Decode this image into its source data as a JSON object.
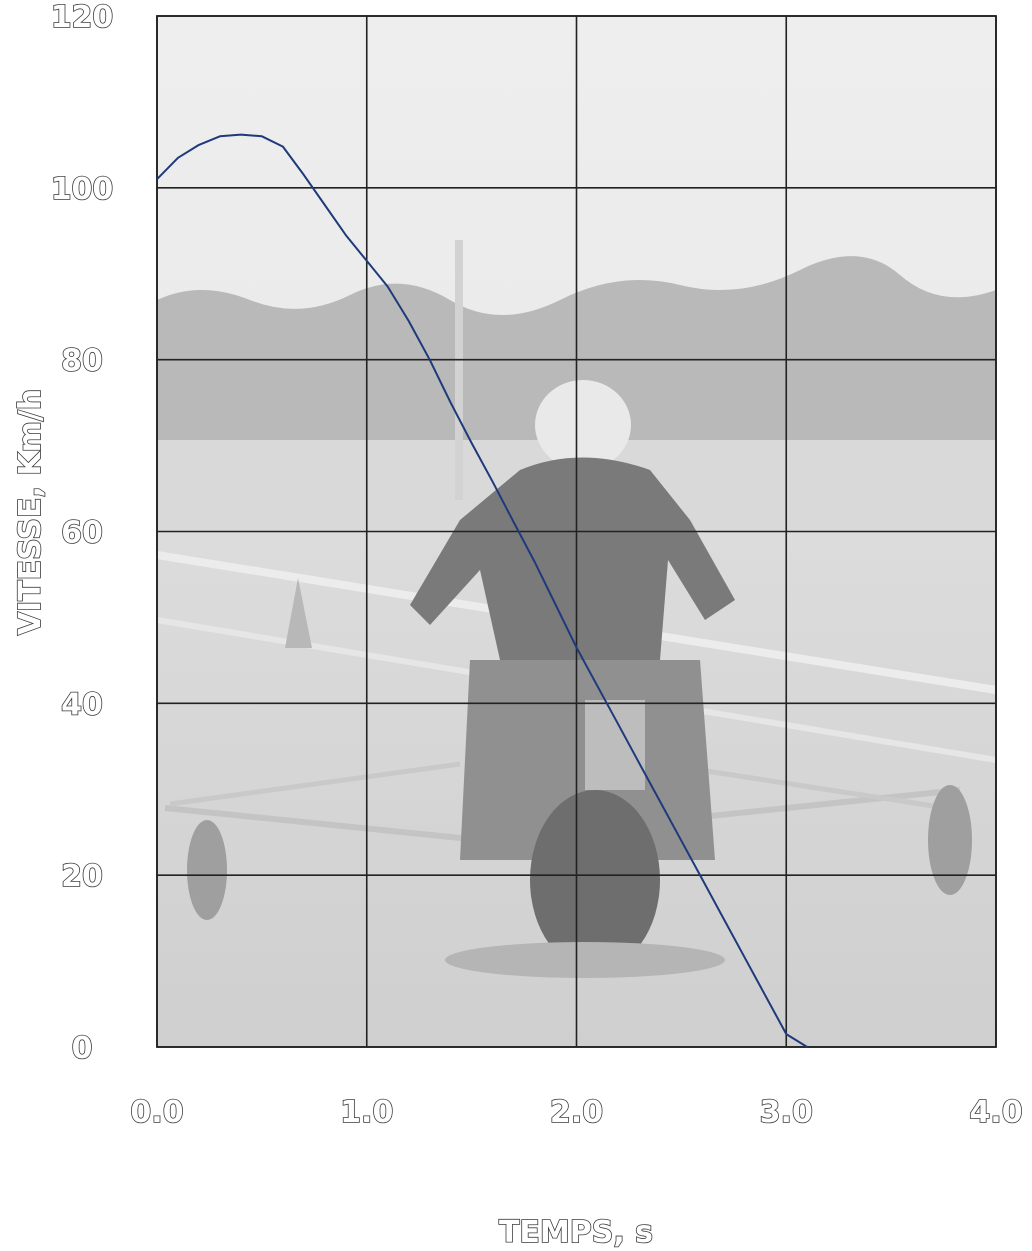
{
  "chart_data": {
    "type": "line",
    "title": "",
    "xlabel": "TEMPS, s",
    "ylabel": "VITESSE, Km/h",
    "xlim": [
      0,
      4
    ],
    "ylim": [
      0,
      120
    ],
    "grid": true,
    "x_ticks": [
      "0.0",
      "1.0",
      "2.0",
      "3.0",
      "4.0"
    ],
    "y_ticks": [
      "0",
      "20",
      "40",
      "60",
      "80",
      "100",
      "120"
    ],
    "background": "grayscale photo of motorcycle rider with outrigger training wheels",
    "line_color": "#1f3a7a",
    "series": [
      {
        "x": [
          0.0,
          0.1,
          0.2,
          0.3,
          0.4,
          0.5,
          0.6,
          0.7,
          0.8,
          0.9,
          1.0,
          1.1,
          1.2,
          1.3,
          1.4,
          1.5,
          1.6,
          1.7,
          1.8,
          1.9,
          2.0,
          2.1,
          2.2,
          2.3,
          2.4,
          2.5,
          2.6,
          2.7,
          2.8,
          2.9,
          3.0,
          3.1,
          3.2,
          3.3,
          3.4,
          3.54
        ],
        "y": [
          101,
          103.5,
          105,
          106,
          106.2,
          106,
          104.8,
          101.5,
          98,
          94.5,
          91.5,
          88.5,
          84.5,
          80,
          75,
          70.3,
          65.8,
          61.1,
          56.5,
          51.5,
          46.5,
          42,
          37.5,
          33,
          28.5,
          24,
          19.5,
          15,
          10.5,
          6,
          1.5,
          0,
          0,
          0,
          0,
          0
        ]
      }
    ]
  }
}
